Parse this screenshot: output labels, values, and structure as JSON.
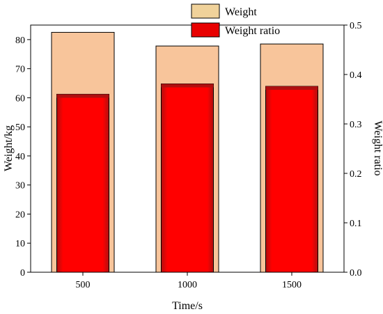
{
  "chart_data": {
    "type": "bar",
    "title": "",
    "xlabel": "Time/s",
    "ylabel": "Weight/kg",
    "ylabel_right": "Weight ratio",
    "categories": [
      "500",
      "1000",
      "1500"
    ],
    "ylim": [
      0,
      85
    ],
    "ylim_right": [
      0,
      0.5
    ],
    "yticks": [
      "0",
      "10",
      "20",
      "30",
      "40",
      "50",
      "60",
      "70",
      "80"
    ],
    "yticks_right": [
      "0.0",
      "0.1",
      "0.2",
      "0.3",
      "0.4",
      "0.5"
    ],
    "legend_position": "top-right",
    "series": [
      {
        "name": "Weight",
        "axis": "left",
        "color": "#f8c59b",
        "values": [
          82.5,
          77.8,
          78.5
        ]
      },
      {
        "name": "Weight ratio",
        "axis": "right",
        "color": "#ff0000",
        "values": [
          0.36,
          0.381,
          0.376
        ]
      }
    ]
  }
}
